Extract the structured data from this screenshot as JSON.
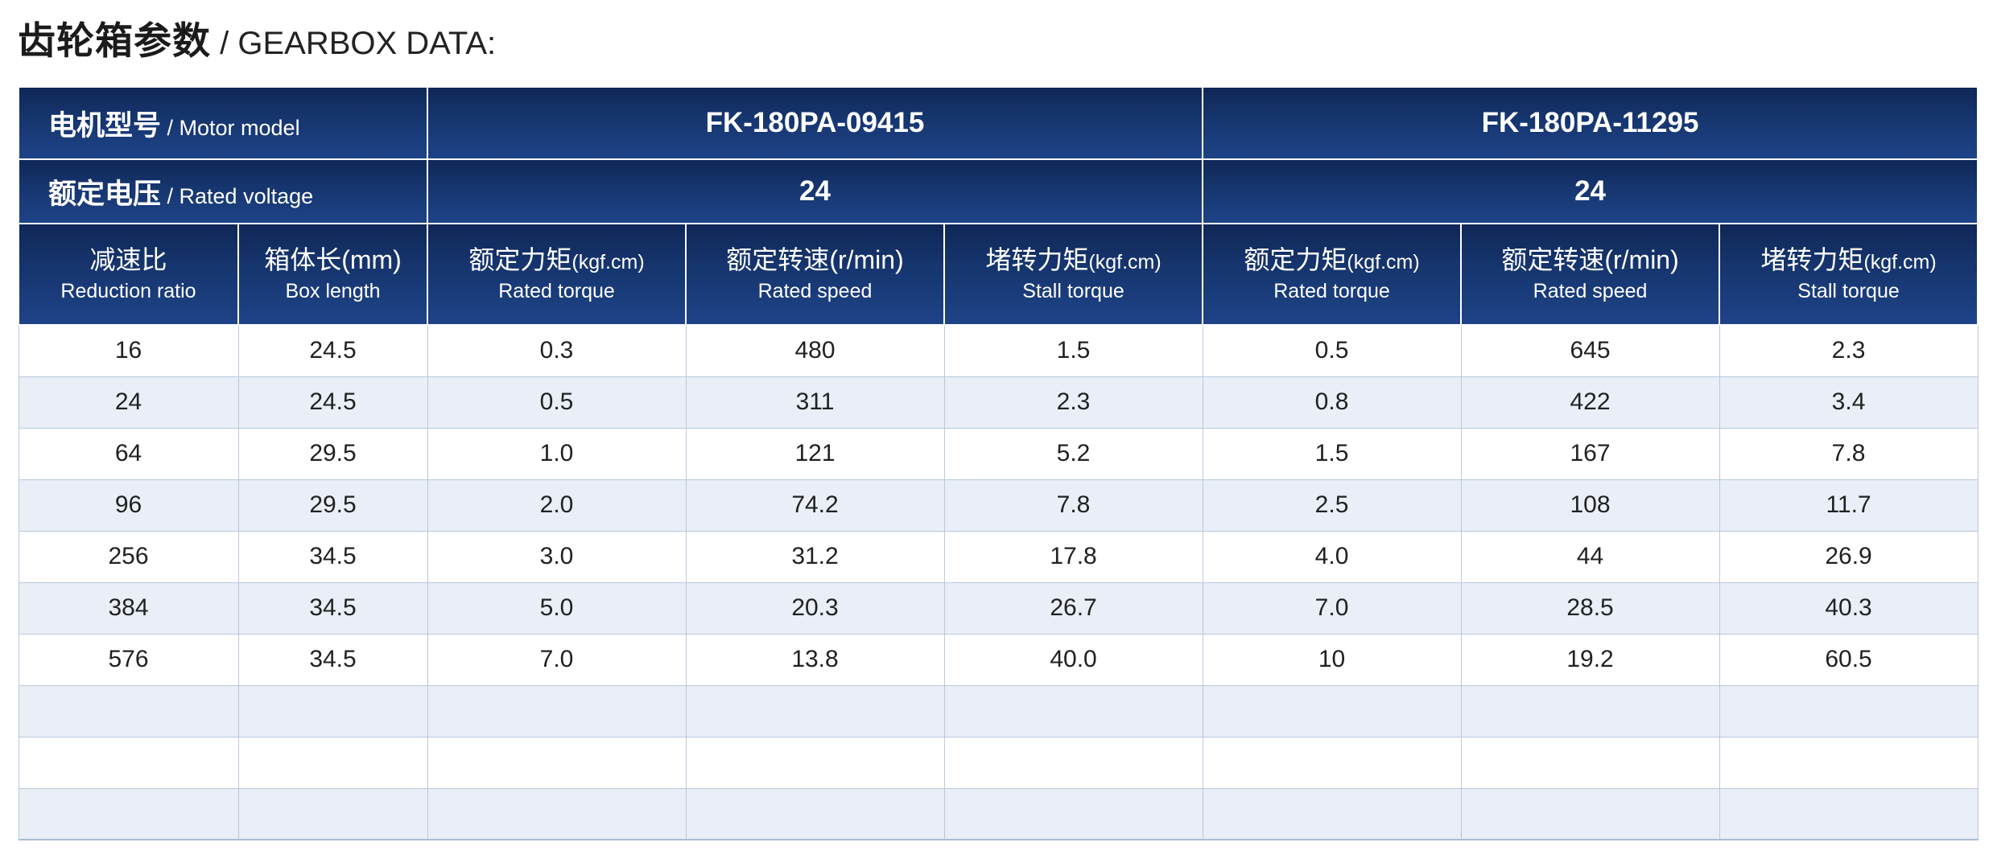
{
  "page": {
    "title_zh": "齿轮箱参数",
    "title_en": " / GEARBOX DATA:"
  },
  "table": {
    "motor_model_label_zh": "电机型号",
    "motor_model_label_en": " / Motor model",
    "rated_voltage_label_zh": "额定电压",
    "rated_voltage_label_en": " / Rated voltage",
    "motors": [
      {
        "model": "FK-180PA-09415",
        "voltage": "24"
      },
      {
        "model": "FK-180PA-11295",
        "voltage": "24"
      }
    ],
    "columns": [
      {
        "zh": "减速比",
        "unit": "",
        "en": "Reduction ratio"
      },
      {
        "zh": "箱体长",
        "unit": "(mm)",
        "en": "Box length"
      },
      {
        "zh": "额定力矩",
        "unit": "(kgf.cm)",
        "en": "Rated torque"
      },
      {
        "zh": "额定转速",
        "unit": "(r/min)",
        "en": "Rated speed"
      },
      {
        "zh": "堵转力矩",
        "unit": "(kgf.cm)",
        "en": "Stall torque"
      },
      {
        "zh": "额定力矩",
        "unit": "(kgf.cm)",
        "en": "Rated torque"
      },
      {
        "zh": "额定转速",
        "unit": "(r/min)",
        "en": "Rated speed"
      },
      {
        "zh": "堵转力矩",
        "unit": "(kgf.cm)",
        "en": "Stall torque"
      }
    ],
    "rows": [
      [
        "16",
        "24.5",
        "0.3",
        "480",
        "1.5",
        "0.5",
        "645",
        "2.3"
      ],
      [
        "24",
        "24.5",
        "0.5",
        "311",
        "2.3",
        "0.8",
        "422",
        "3.4"
      ],
      [
        "64",
        "29.5",
        "1.0",
        "121",
        "5.2",
        "1.5",
        "167",
        "7.8"
      ],
      [
        "96",
        "29.5",
        "2.0",
        "74.2",
        "7.8",
        "2.5",
        "108",
        "11.7"
      ],
      [
        "256",
        "34.5",
        "3.0",
        "31.2",
        "17.8",
        "4.0",
        "44",
        "26.9"
      ],
      [
        "384",
        "34.5",
        "5.0",
        "20.3",
        "26.7",
        "7.0",
        "28.5",
        "40.3"
      ],
      [
        "576",
        "34.5",
        "7.0",
        "13.8",
        "40.0",
        "10",
        "19.2",
        "60.5"
      ],
      [
        "",
        "",
        "",
        "",
        "",
        "",
        "",
        ""
      ],
      [
        "",
        "",
        "",
        "",
        "",
        "",
        "",
        ""
      ],
      [
        "",
        "",
        "",
        "",
        "",
        "",
        "",
        ""
      ]
    ]
  },
  "colors": {
    "header_navy_top": "#0f2757",
    "header_navy_bottom": "#1e4387",
    "header_text": "#ffffff",
    "row_white": "#ffffff",
    "row_alt_blue": "#e9eef7",
    "grid_line": "#b9c9dd",
    "title_text": "#1b1b1b"
  }
}
